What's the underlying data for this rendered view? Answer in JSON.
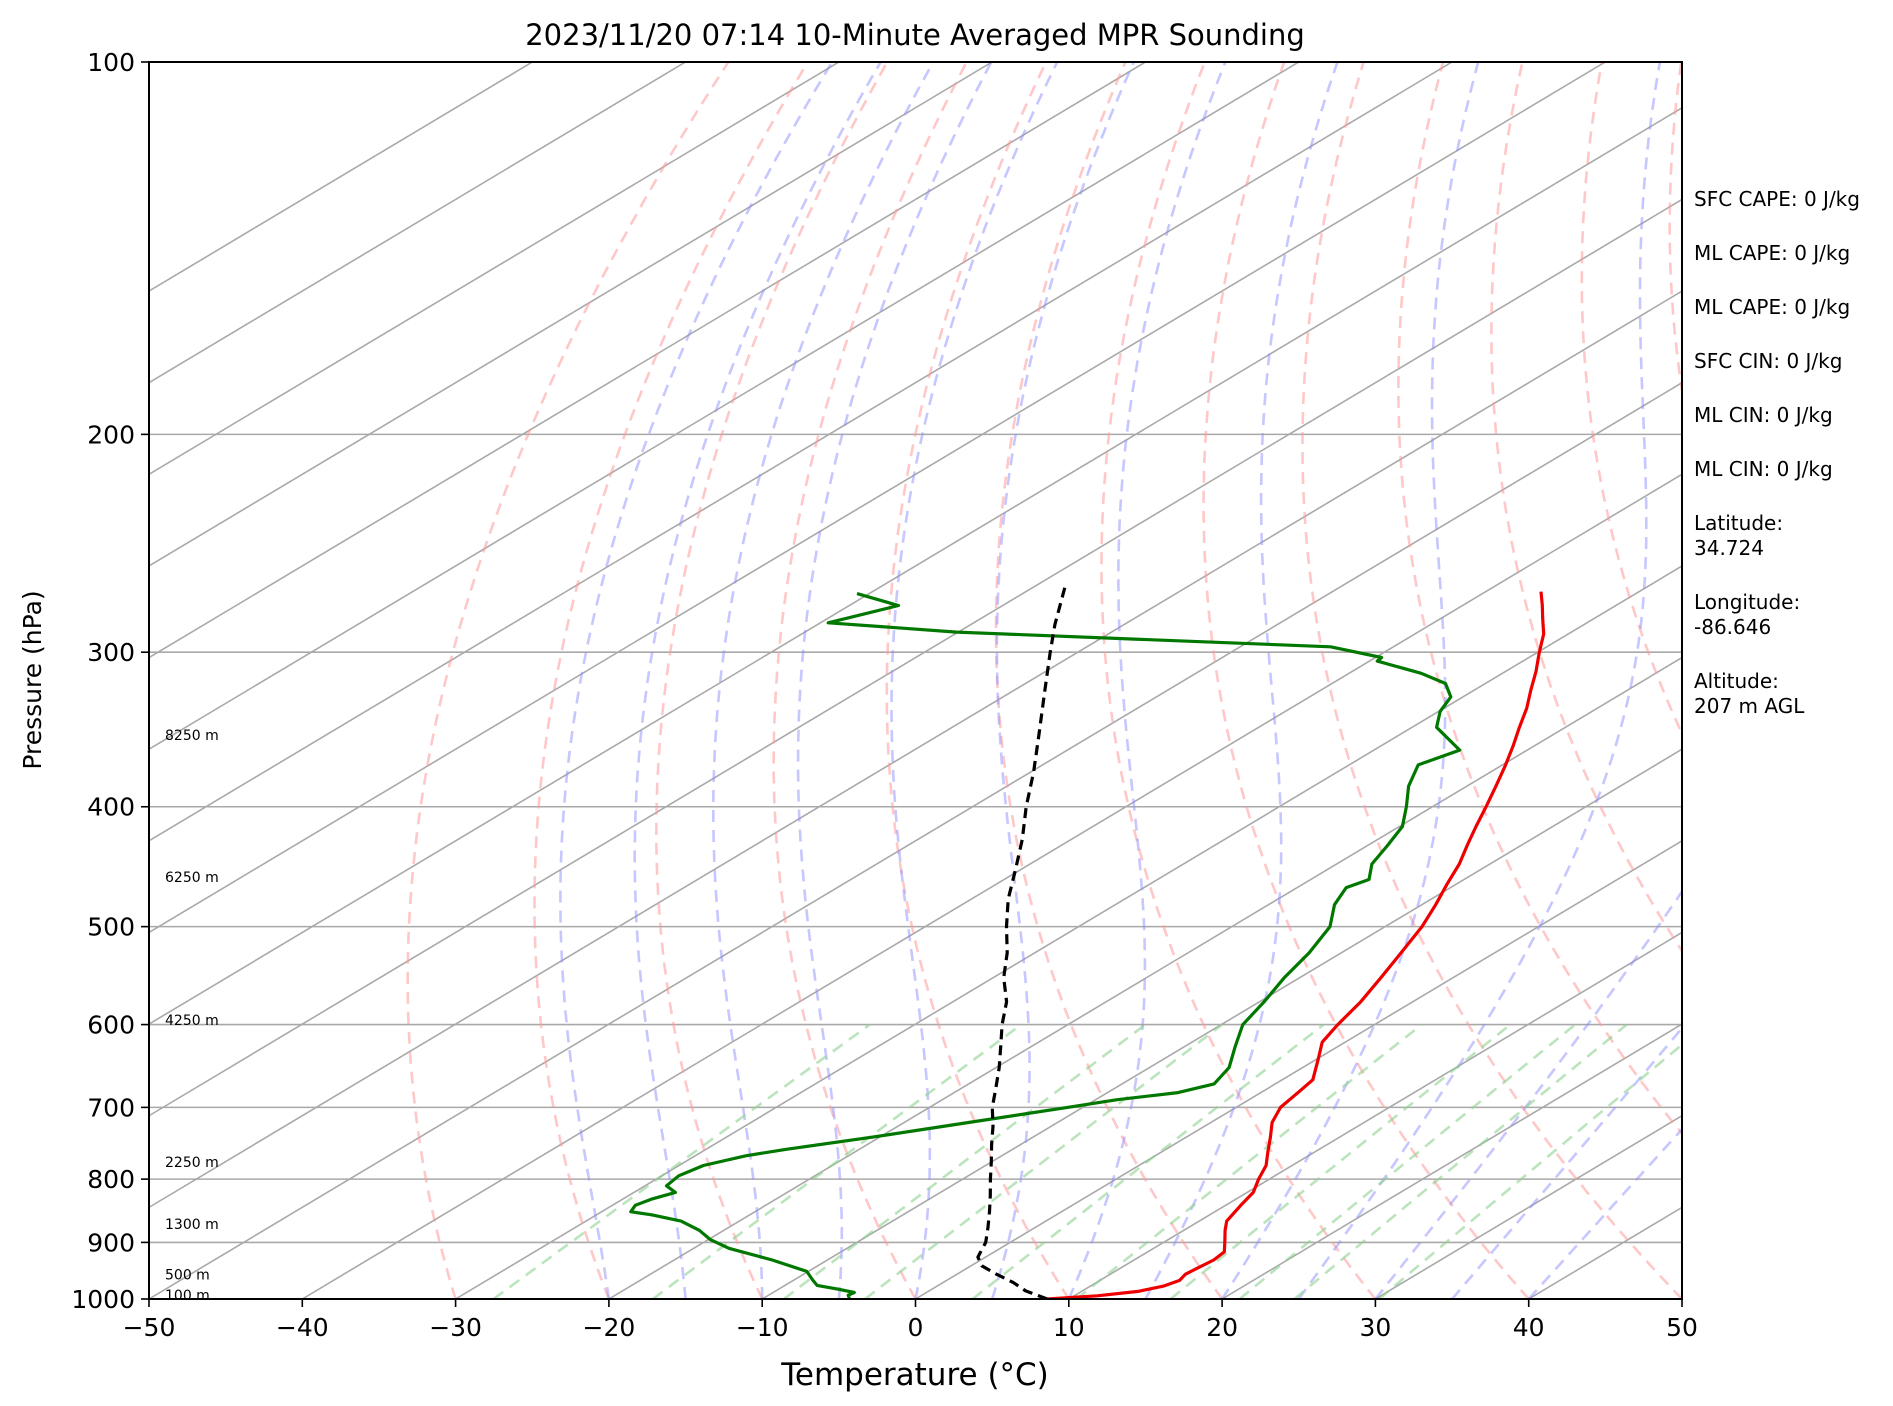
{
  "chart_data": {
    "type": "skew-t",
    "title": "2023/11/20 07:14 10-Minute Averaged MPR Sounding",
    "xlabel": "Temperature (°C)",
    "ylabel": "Pressure (hPa)",
    "xlim": [
      -50,
      50
    ],
    "ylim": [
      1000,
      100
    ],
    "y_scale": "log",
    "grid": true,
    "x_ticks": [
      -50,
      -40,
      -30,
      -20,
      -10,
      0,
      10,
      20,
      30,
      40,
      50
    ],
    "x_tick_labels": [
      "−50",
      "−40",
      "−30",
      "−20",
      "−10",
      "0",
      "10",
      "20",
      "30",
      "40",
      "50"
    ],
    "y_ticks": [
      1000,
      900,
      800,
      700,
      600,
      500,
      400,
      300,
      200,
      100
    ],
    "y_tick_labels": [
      "1000",
      "900",
      "800",
      "700",
      "600",
      "500",
      "400",
      "300",
      "200",
      "100"
    ],
    "height_labels": [
      {
        "text": "100 m",
        "p": 993
      },
      {
        "text": "500 m",
        "p": 955
      },
      {
        "text": "1300 m",
        "p": 870
      },
      {
        "text": "2250 m",
        "p": 775
      },
      {
        "text": "4250 m",
        "p": 595
      },
      {
        "text": "6250 m",
        "p": 456
      },
      {
        "text": "8250 m",
        "p": 350
      }
    ],
    "series": [
      {
        "color": "#ee0000",
        "style": "solid",
        "points": [
          [
            1000,
            8.6
          ],
          [
            994,
            11.5
          ],
          [
            986,
            13.7
          ],
          [
            976,
            14.8
          ],
          [
            966,
            15.2
          ],
          [
            955,
            14.9
          ],
          [
            946,
            15.0
          ],
          [
            930,
            15.2
          ],
          [
            916,
            15.0
          ],
          [
            900,
            14.0
          ],
          [
            880,
            12.7
          ],
          [
            865,
            11.8
          ],
          [
            840,
            11.0
          ],
          [
            820,
            10.4
          ],
          [
            800,
            9.3
          ],
          [
            780,
            8.3
          ],
          [
            760,
            6.9
          ],
          [
            740,
            5.5
          ],
          [
            720,
            4.0
          ],
          [
            700,
            2.9
          ],
          [
            680,
            2.4
          ],
          [
            665,
            2.0
          ],
          [
            640,
            0.1
          ],
          [
            620,
            -1.5
          ],
          [
            600,
            -2.4
          ],
          [
            575,
            -3.4
          ],
          [
            550,
            -4.7
          ],
          [
            525,
            -6.1
          ],
          [
            500,
            -7.6
          ],
          [
            480,
            -9.1
          ],
          [
            462,
            -10.6
          ],
          [
            445,
            -12.0
          ],
          [
            430,
            -13.5
          ],
          [
            415,
            -15.0
          ],
          [
            400,
            -16.5
          ],
          [
            385,
            -18.1
          ],
          [
            370,
            -19.8
          ],
          [
            357,
            -21.4
          ],
          [
            345,
            -23.0
          ],
          [
            333,
            -24.6
          ],
          [
            322,
            -26.3
          ],
          [
            311,
            -28.0
          ],
          [
            300,
            -29.9
          ],
          [
            290,
            -31.6
          ],
          [
            282,
            -33.3
          ],
          [
            275,
            -34.8
          ],
          [
            268,
            -36.4
          ]
        ]
      },
      {
        "color": "#007800",
        "style": "solid",
        "points": [
          [
            1000,
            -4.3
          ],
          [
            993,
            -4.8
          ],
          [
            988,
            -4.7
          ],
          [
            982,
            -6.1
          ],
          [
            975,
            -7.9
          ],
          [
            965,
            -8.8
          ],
          [
            950,
            -10.1
          ],
          [
            930,
            -13.6
          ],
          [
            910,
            -17.7
          ],
          [
            895,
            -19.9
          ],
          [
            880,
            -21.6
          ],
          [
            865,
            -23.8
          ],
          [
            855,
            -26.4
          ],
          [
            850,
            -28.1
          ],
          [
            840,
            -28.5
          ],
          [
            830,
            -28.1
          ],
          [
            820,
            -27.3
          ],
          [
            810,
            -28.6
          ],
          [
            795,
            -28.9
          ],
          [
            780,
            -28.4
          ],
          [
            766,
            -26.7
          ],
          [
            757,
            -24.8
          ],
          [
            740,
            -20.5
          ],
          [
            720,
            -15.8
          ],
          [
            700,
            -11.0
          ],
          [
            690,
            -8.6
          ],
          [
            681,
            -5.4
          ],
          [
            670,
            -4.0
          ],
          [
            650,
            -4.8
          ],
          [
            625,
            -6.7
          ],
          [
            600,
            -8.6
          ],
          [
            575,
            -9.7
          ],
          [
            550,
            -11.0
          ],
          [
            525,
            -12.1
          ],
          [
            500,
            -13.6
          ],
          [
            480,
            -15.7
          ],
          [
            465,
            -16.8
          ],
          [
            458,
            -16.2
          ],
          [
            445,
            -17.7
          ],
          [
            430,
            -18.7
          ],
          [
            415,
            -19.8
          ],
          [
            400,
            -21.7
          ],
          [
            385,
            -23.8
          ],
          [
            370,
            -25.5
          ],
          [
            360,
            -24.4
          ],
          [
            345,
            -28.4
          ],
          [
            335,
            -29.9
          ],
          [
            326,
            -30.8
          ],
          [
            318,
            -32.6
          ],
          [
            312,
            -35.3
          ],
          [
            305,
            -39.5
          ],
          [
            303,
            -39.6
          ],
          [
            297,
            -44.1
          ],
          [
            289,
            -70.1
          ],
          [
            284,
            -79.5
          ],
          [
            275,
            -76.8
          ],
          [
            269,
            -80.8
          ]
        ]
      },
      {
        "color": "#000000",
        "style": "dashed",
        "points": [
          [
            1000,
            8.6
          ],
          [
            985,
            6.3
          ],
          [
            970,
            4.6
          ],
          [
            955,
            2.6
          ],
          [
            940,
            0.7
          ],
          [
            925,
            -0.5
          ],
          [
            900,
            -1.6
          ],
          [
            875,
            -3.1
          ],
          [
            850,
            -4.7
          ],
          [
            825,
            -6.4
          ],
          [
            800,
            -8.2
          ],
          [
            775,
            -10.0
          ],
          [
            750,
            -11.9
          ],
          [
            725,
            -13.8
          ],
          [
            700,
            -15.9
          ],
          [
            675,
            -17.8
          ],
          [
            650,
            -19.8
          ],
          [
            625,
            -22.0
          ],
          [
            600,
            -24.3
          ],
          [
            575,
            -26.5
          ],
          [
            550,
            -29.3
          ],
          [
            525,
            -31.8
          ],
          [
            500,
            -34.7
          ],
          [
            475,
            -37.6
          ],
          [
            450,
            -40.3
          ],
          [
            425,
            -43.2
          ],
          [
            400,
            -46.5
          ],
          [
            375,
            -49.8
          ],
          [
            350,
            -53.5
          ],
          [
            325,
            -57.5
          ],
          [
            300,
            -61.8
          ],
          [
            285,
            -64.5
          ],
          [
            266,
            -67.9
          ]
        ]
      }
    ]
  },
  "side_stats": [
    "SFC CAPE: 0 J/kg",
    "ML CAPE: 0 J/kg",
    "ML CAPE: 0 J/kg",
    "SFC CIN: 0 J/kg",
    "ML CIN: 0 J/kg",
    "ML CIN: 0 J/kg",
    "Latitude:\n34.724",
    "Longitude:\n-86.646",
    "Altitude:\n207 m AGL"
  ],
  "colors": {
    "isotherm": "#a9a9a9",
    "dry_adiabat": "#ff9b9b",
    "moist_adiabat": "#8f8fff",
    "mixing_ratio": "#8fd28f"
  }
}
